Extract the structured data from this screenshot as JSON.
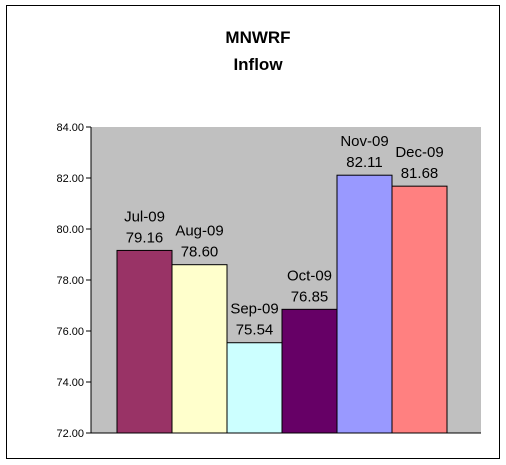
{
  "chart_data": {
    "type": "bar",
    "title": [
      "MNWRF",
      "Inflow"
    ],
    "categories": [
      "Jul-09",
      "Aug-09",
      "Sep-09",
      "Oct-09",
      "Nov-09",
      "Dec-09"
    ],
    "values": [
      79.16,
      78.6,
      75.54,
      76.85,
      82.11,
      81.68
    ],
    "value_labels": [
      "79.16",
      "78.60",
      "75.54",
      "76.85",
      "82.11",
      "81.68"
    ],
    "bar_colors": [
      "#993366",
      "#FFFFCC",
      "#CCFFFF",
      "#660066",
      "#9999FF",
      "#FF8080"
    ],
    "ylim": [
      72,
      84
    ],
    "yticks": [
      "72.00",
      "74.00",
      "76.00",
      "78.00",
      "80.00",
      "82.00",
      "84.00"
    ],
    "xlabel": "",
    "ylabel": "",
    "plot_background": "#C0C0C0",
    "grid": false,
    "legend": "none"
  }
}
